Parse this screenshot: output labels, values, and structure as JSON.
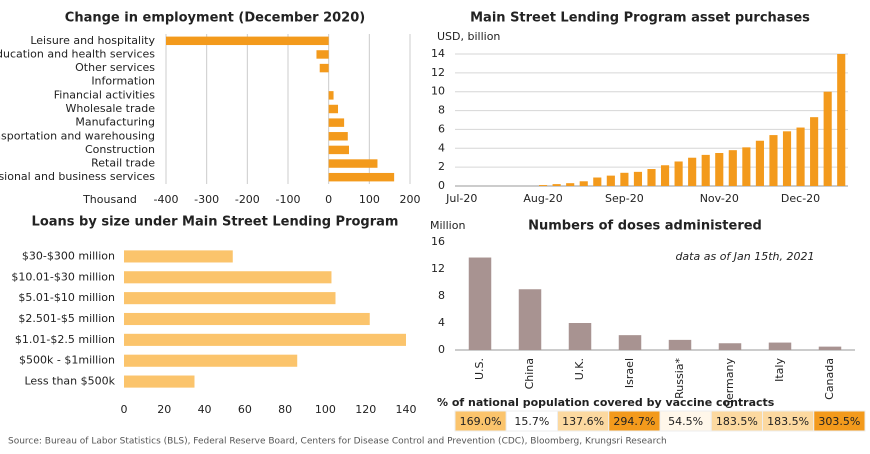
{
  "chart_data": [
    {
      "type": "hbar",
      "title": "Change in employment (December 2020)",
      "xlabel": "Thousand",
      "categories": [
        "Leisure and hospitality",
        "Education and health services",
        "Other services",
        "Information",
        "Financial activities",
        "Wholesale trade",
        "Manufacturing",
        "Transportation and warehousing",
        "Construction",
        "Retail trade",
        "Professional and business services"
      ],
      "values": [
        -400,
        -30,
        -22,
        0,
        12,
        23,
        38,
        47,
        50,
        120,
        161
      ],
      "color": "#f39a1c",
      "xlim": [
        -400,
        200
      ],
      "xticks": [
        -400,
        -300,
        -200,
        -100,
        0,
        100,
        200
      ],
      "grid": true
    },
    {
      "type": "bar",
      "title": "Main Street Lending Program asset purchases",
      "ylabel": "USD, billion",
      "categories": [
        "Jul-20",
        null,
        null,
        null,
        null,
        null,
        "Aug-20",
        null,
        null,
        null,
        null,
        null,
        "Sep-20",
        null,
        null,
        null,
        null,
        null,
        null,
        "Nov-20",
        null,
        null,
        null,
        null,
        null,
        "Dec-20",
        null,
        null,
        null
      ],
      "values": [
        0,
        0,
        0,
        0,
        0,
        0,
        0.1,
        0.2,
        0.3,
        0.5,
        0.9,
        1.1,
        1.4,
        1.5,
        1.8,
        2.2,
        2.6,
        3.0,
        3.3,
        3.5,
        3.8,
        4.1,
        4.8,
        5.4,
        5.8,
        6.2,
        7.3,
        10.0,
        14.0
      ],
      "color": "#f39a1c",
      "ylim": [
        0,
        14
      ],
      "yticks": [
        0,
        2,
        4,
        6,
        8,
        10,
        12,
        14
      ],
      "grid": true
    },
    {
      "type": "hbar",
      "title": "Loans by size under Main Street Lending Program",
      "categories": [
        "$30-$300 million",
        "$10.01-$30 million",
        "$5.01-$10 million",
        "$2.501-$5 million",
        "$1.01-$2.5 million",
        "$500k - $1million",
        "Less than $500k"
      ],
      "values": [
        54,
        103,
        105,
        122,
        140,
        86,
        35
      ],
      "color": "#fbc46c",
      "xlim": [
        0,
        140
      ],
      "xticks": [
        0,
        20,
        40,
        60,
        80,
        100,
        120,
        140
      ],
      "grid": false
    },
    {
      "type": "bar",
      "title": "Numbers of doses administered",
      "ylabel": "Million",
      "annotation": "data as of Jan 15th, 2021",
      "categories": [
        "U.S.",
        "China",
        "U.K.",
        "Israel",
        "Russia*",
        "Germany",
        "Italy",
        "Canada"
      ],
      "values": [
        13.7,
        9.0,
        4.0,
        2.2,
        1.5,
        1.0,
        1.1,
        0.5
      ],
      "color": "#a89391",
      "ylim": [
        0,
        16
      ],
      "yticks": [
        0,
        4,
        8,
        12,
        16
      ],
      "grid": false,
      "table": {
        "title": "% of national population covered by vaccine contracts",
        "values": [
          169.0,
          15.7,
          137.6,
          294.7,
          54.5,
          183.5,
          183.5,
          303.5
        ],
        "value_labels": [
          "169.0%",
          "15.7%",
          "137.6%",
          "294.7%",
          "54.5%",
          "183.5%",
          "183.5%",
          "303.5%"
        ],
        "colors": [
          "#fbc46c",
          "#ffffff",
          "#fcd9a0",
          "#f39a1c",
          "#fff7ea",
          "#fcd9a0",
          "#fcd9a0",
          "#f39a1c"
        ]
      }
    }
  ],
  "source": "Source: Bureau of Labor Statistics (BLS), Federal Reserve Board, Centers for Disease Control and Prevention (CDC), Bloomberg, Krungsri Research"
}
